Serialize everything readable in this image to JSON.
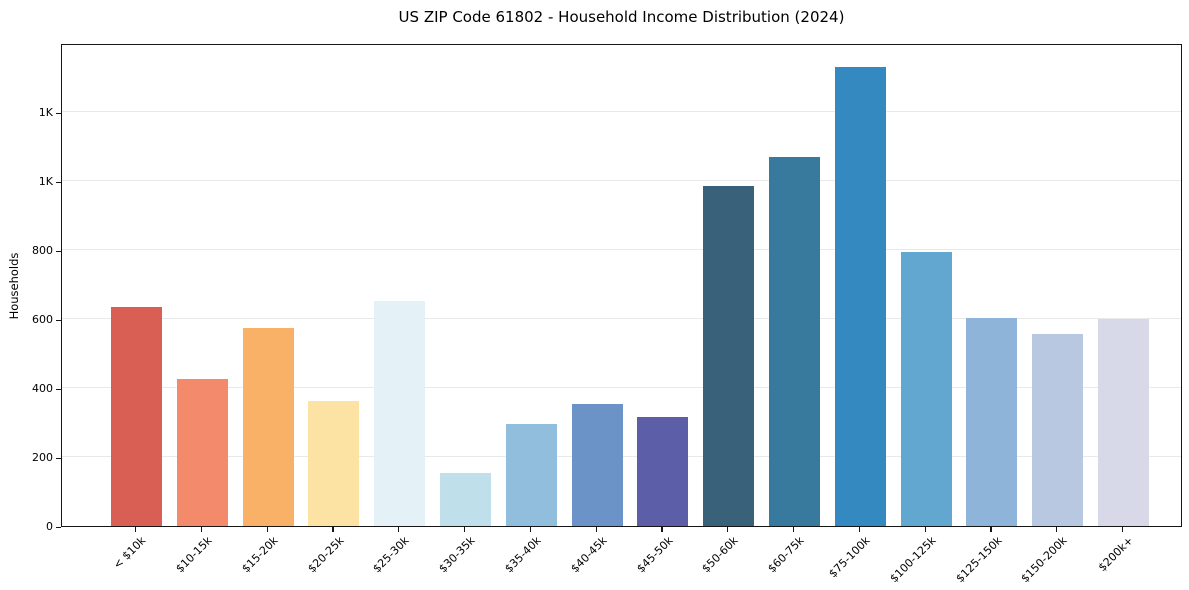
{
  "title": "US ZIP Code 61802 - Household Income Distribution (2024)",
  "chart_data": {
    "type": "bar",
    "title": "US ZIP Code 61802 - Household Income Distribution (2024)",
    "xlabel": "",
    "ylabel": "Households",
    "categories": [
      "< $10k",
      "$10-15k",
      "$15-20k",
      "$20-25k",
      "$25-30k",
      "$30-35k",
      "$35-40k",
      "$40-45k",
      "$45-50k",
      "$50-60k",
      "$60-75k",
      "$75-100k",
      "$100-125k",
      "$125-150k",
      "$150-200k",
      "$200k+"
    ],
    "values": [
      635,
      425,
      575,
      362,
      651,
      153,
      297,
      354,
      317,
      987,
      1071,
      1330,
      793,
      603,
      557,
      600
    ],
    "bar_colors": [
      "#d95f55",
      "#f48a6c",
      "#f9b168",
      "#fce3a3",
      "#e4f1f6",
      "#bfdfeb",
      "#91bedd",
      "#6b93c8",
      "#5c5fa8",
      "#39627a",
      "#38799e",
      "#3489c0",
      "#61a7cf",
      "#8eb5d9",
      "#b8c8e0",
      "#d7d9e8"
    ],
    "ylim": [
      0,
      1400
    ],
    "yticks": [
      {
        "value": 0,
        "label": "0"
      },
      {
        "value": 200,
        "label": "200"
      },
      {
        "value": 400,
        "label": "400"
      },
      {
        "value": 600,
        "label": "600"
      },
      {
        "value": 800,
        "label": "800"
      },
      {
        "value": 1000,
        "label": "1K"
      },
      {
        "value": 1200,
        "label": "1K"
      }
    ],
    "grid": true,
    "legend": false,
    "x_tick_rotation_deg": 45
  },
  "colors": {
    "background": "#ffffff",
    "spine": "#161616",
    "grid": "#e9e9e9",
    "text": "#000000"
  }
}
